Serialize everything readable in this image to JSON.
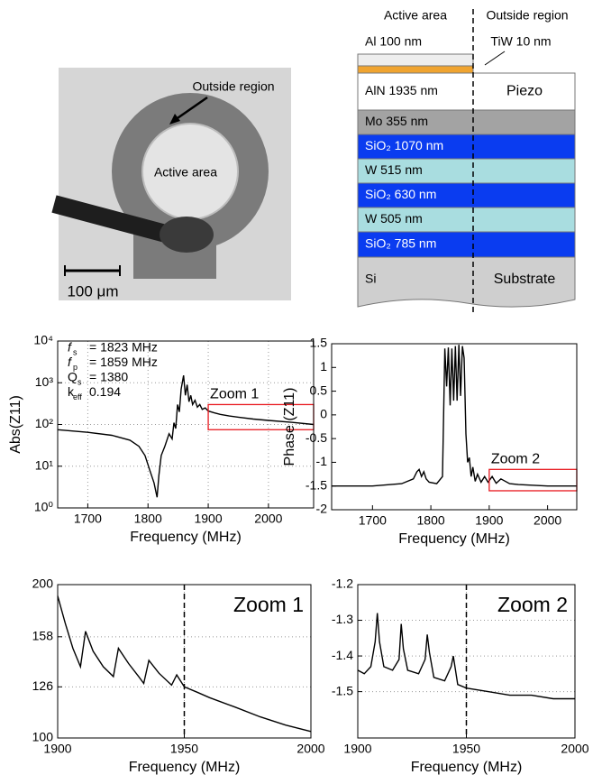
{
  "photo": {
    "labels": [
      "Outside region",
      "Active area",
      "100 μm"
    ]
  },
  "stack": {
    "headers": [
      "Active area",
      "Outside region"
    ],
    "top_layers": [
      "Al 100 nm",
      "TiW 10 nm"
    ],
    "layers": [
      {
        "label": "AlN 1935 nm",
        "region": "Piezo",
        "color": "#ffffff",
        "text_color": "#000000"
      },
      {
        "label": "Mo 355 nm",
        "color": "#a3a3a3",
        "text_color": "#000000"
      },
      {
        "label": "SiO₂ 1070 nm",
        "color": "#0a3cf0",
        "text_color": "#ffffff"
      },
      {
        "label": "W 515 nm",
        "color": "#a9dde0",
        "text_color": "#000000"
      },
      {
        "label": "SiO₂ 630 nm",
        "color": "#0a3cf0",
        "text_color": "#ffffff"
      },
      {
        "label": "W 505 nm",
        "color": "#a9dde0",
        "text_color": "#000000"
      },
      {
        "label": "SiO₂ 785 nm",
        "color": "#0a3cf0",
        "text_color": "#ffffff"
      },
      {
        "label": "Si",
        "region": "Substrate",
        "color": "#cfcfcf",
        "text_color": "#000000"
      }
    ]
  },
  "chart_data": [
    {
      "type": "line",
      "xlabel": "Frequency (MHz)",
      "ylabel": "Abs(Z11)",
      "ylog": true,
      "grid": true,
      "color": "#000000",
      "xlim": [
        1650,
        2075
      ],
      "ylim": [
        1,
        10000
      ],
      "xticks": [
        1700,
        1800,
        1900,
        2000
      ],
      "yticks": [
        {
          "value": 1,
          "label": "10⁰"
        },
        {
          "value": 10,
          "label": "10¹"
        },
        {
          "value": 100,
          "label": "10²"
        },
        {
          "value": 1000,
          "label": "10³"
        },
        {
          "value": 10000,
          "label": "10⁴"
        }
      ],
      "x": [
        1650,
        1700,
        1740,
        1770,
        1785,
        1795,
        1803,
        1810,
        1815,
        1818,
        1822,
        1828,
        1835,
        1840,
        1843,
        1846,
        1849,
        1852,
        1855,
        1859,
        1862,
        1865,
        1868,
        1871,
        1874,
        1878,
        1882,
        1886,
        1890,
        1895,
        1900,
        1910,
        1920,
        1935,
        1950,
        1975,
        2000,
        2040,
        2075
      ],
      "values": [
        75,
        65,
        55,
        42,
        30,
        18,
        8,
        4,
        1.8,
        6,
        18,
        30,
        60,
        45,
        110,
        80,
        300,
        200,
        700,
        1500,
        500,
        900,
        350,
        500,
        300,
        380,
        260,
        300,
        230,
        250,
        210,
        190,
        175,
        160,
        150,
        135,
        125,
        112,
        100
      ],
      "params": [
        {
          "symbol": "f",
          "sub": "s",
          "text": "= 1823 MHz"
        },
        {
          "symbol": "f",
          "sub": "p",
          "text": "= 1859 MHz"
        },
        {
          "symbol": "Q",
          "sub": "s",
          "text": "= 1380"
        },
        {
          "symbol": "k",
          "sub": "eff",
          "text": "0.194"
        }
      ],
      "zoom_box": {
        "x": [
          1900,
          2075
        ],
        "y": [
          75,
          300
        ]
      },
      "zoom_label": "Zoom 1"
    },
    {
      "type": "line",
      "xlabel": "Frequency (MHz)",
      "ylabel": "Phase (Z11)",
      "ylog": false,
      "grid": false,
      "color": "#000000",
      "xlim": [
        1630,
        2050
      ],
      "ylim": [
        -2,
        1.5
      ],
      "xticks": [
        1700,
        1800,
        1900,
        2000
      ],
      "yticks": [
        -2,
        -1.5,
        -1,
        -0.5,
        0,
        0.5,
        1,
        1.5
      ],
      "x": [
        1630,
        1700,
        1750,
        1770,
        1776,
        1780,
        1784,
        1788,
        1792,
        1797,
        1810,
        1820,
        1824,
        1827,
        1830,
        1833,
        1836,
        1839,
        1842,
        1845,
        1848,
        1851,
        1854,
        1857,
        1860,
        1863,
        1866,
        1869,
        1872,
        1876,
        1880,
        1886,
        1892,
        1898,
        1905,
        1912,
        1920,
        1935,
        1950,
        2000,
        2050
      ],
      "values": [
        -1.5,
        -1.5,
        -1.45,
        -1.35,
        -1.2,
        -1.15,
        -1.3,
        -1.2,
        -1.35,
        -1.42,
        -1.45,
        -1.3,
        1.4,
        0.6,
        1.42,
        0.2,
        1.4,
        0.3,
        1.45,
        0.3,
        1.48,
        0.4,
        1.45,
        1.2,
        -0.4,
        -1.0,
        -0.9,
        -1.3,
        -1.1,
        -1.4,
        -1.25,
        -1.42,
        -1.3,
        -1.42,
        -1.3,
        -1.44,
        -1.35,
        -1.45,
        -1.47,
        -1.5,
        -1.5
      ],
      "zoom_box": {
        "x": [
          1900,
          2050
        ],
        "y": [
          -1.6,
          -1.15
        ]
      },
      "zoom_label": "Zoom 2"
    },
    {
      "type": "line",
      "xlabel": "Frequency (MHz)",
      "title": "Zoom 1",
      "ylog": true,
      "grid": true,
      "color": "#000000",
      "xlim": [
        1900,
        2000
      ],
      "ylim": [
        100,
        200
      ],
      "xticks": [
        1900,
        1950,
        2000
      ],
      "yticks": [
        100,
        126,
        158,
        200
      ],
      "marker_x": 1950,
      "x": [
        1900,
        1903,
        1906,
        1909,
        1911,
        1914,
        1918,
        1922,
        1924,
        1928,
        1932,
        1934,
        1936,
        1940,
        1945,
        1947,
        1950,
        1955,
        1960,
        1970,
        1980,
        1990,
        2000
      ],
      "values": [
        190,
        168,
        150,
        138,
        162,
        148,
        138,
        132,
        150,
        140,
        132,
        128,
        142,
        134,
        127,
        133,
        126,
        123,
        120,
        115,
        110,
        106,
        103
      ]
    },
    {
      "type": "line",
      "xlabel": "Frequency (MHz)",
      "title": "Zoom 2",
      "ylog": false,
      "grid": true,
      "color": "#000000",
      "xlim": [
        1900,
        2000
      ],
      "ylim": [
        -1.63,
        -1.2
      ],
      "xticks": [
        1900,
        1950,
        2000
      ],
      "yticks": [
        -1.5,
        -1.4,
        -1.3,
        -1.2
      ],
      "marker_x": 1950,
      "x": [
        1900,
        1903,
        1906,
        1908,
        1909,
        1910,
        1912,
        1916,
        1919,
        1920,
        1921,
        1923,
        1928,
        1931,
        1932,
        1933,
        1935,
        1940,
        1943,
        1944,
        1946,
        1950,
        1960,
        1970,
        1980,
        1990,
        2000
      ],
      "values": [
        -1.44,
        -1.45,
        -1.43,
        -1.36,
        -1.28,
        -1.36,
        -1.43,
        -1.44,
        -1.41,
        -1.31,
        -1.38,
        -1.44,
        -1.45,
        -1.41,
        -1.34,
        -1.39,
        -1.46,
        -1.47,
        -1.43,
        -1.4,
        -1.48,
        -1.49,
        -1.5,
        -1.51,
        -1.51,
        -1.52,
        -1.52
      ]
    }
  ]
}
